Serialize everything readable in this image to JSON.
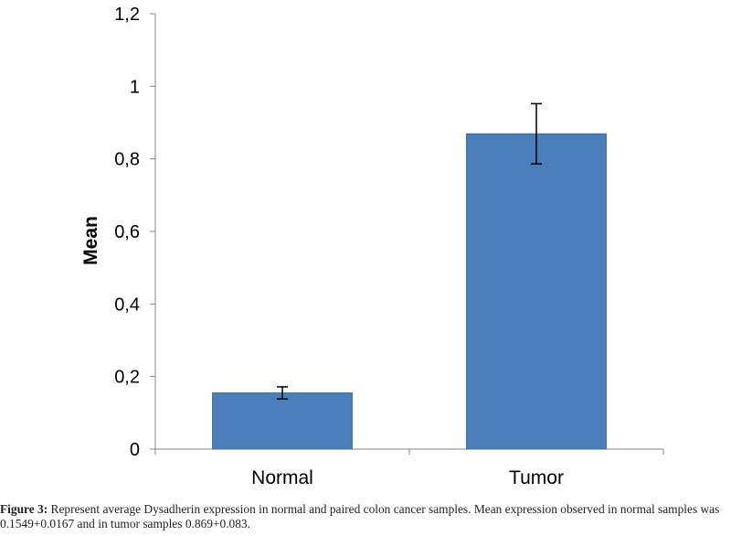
{
  "chart_data": {
    "type": "bar",
    "categories": [
      "Normal",
      "Tumor"
    ],
    "values": [
      0.1549,
      0.869
    ],
    "errors": [
      0.0167,
      0.083
    ],
    "ylabel": "Mean",
    "xlabel": "",
    "ylim": [
      0,
      1.2
    ],
    "yticks": [
      0,
      0.2,
      0.4,
      0.6,
      0.8,
      1,
      1.2
    ],
    "ytick_labels": [
      "0",
      "0,2",
      "0,4",
      "0,6",
      "0,8",
      "1",
      "1,2"
    ],
    "grid": false,
    "bar_color": "#4a7ebb",
    "error_bar_color": "#000000"
  },
  "caption": {
    "label": "Figure 3:",
    "text": " Represent average Dysadherin expression in normal and paired colon cancer samples. Mean expression observed in normal samples was 0.1549+0.0167 and in tumor samples 0.869+0.083."
  }
}
